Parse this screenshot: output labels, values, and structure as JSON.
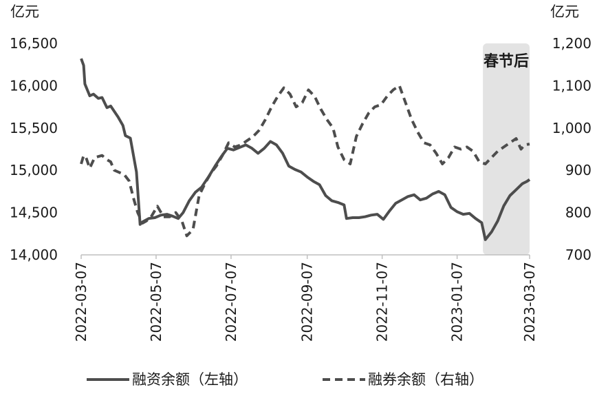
{
  "chart_data": {
    "type": "line",
    "title": "",
    "left_axis": {
      "unit": "亿元",
      "ticks": [
        "16,500",
        "16,000",
        "15,500",
        "15,000",
        "14,500",
        "14,000"
      ],
      "tick_values": [
        16500,
        16000,
        15500,
        15000,
        14500,
        14000
      ],
      "range": [
        14000,
        16500
      ]
    },
    "right_axis": {
      "unit": "亿元",
      "ticks": [
        "1,200",
        "1,100",
        "1,000",
        "900",
        "800",
        "700"
      ],
      "tick_values": [
        1200,
        1100,
        1000,
        900,
        800,
        700
      ],
      "range": [
        700,
        1200
      ]
    },
    "x_axis": {
      "range": [
        "2022-03-07",
        "2023-03-07"
      ],
      "ticks": [
        "2022-03-07",
        "2022-05-07",
        "2022-07-07",
        "2022-09-07",
        "2022-11-07",
        "2023-01-07",
        "2023-03-07"
      ]
    },
    "annotation": {
      "text": "春节后",
      "range": [
        "2023-01-28",
        "2023-03-07"
      ],
      "color": "#e3e3e3"
    },
    "series": [
      {
        "name": "融资余额（左轴）",
        "axis": "left",
        "style": "solid",
        "color": "#4d4d4d",
        "points": [
          [
            "2022-03-07",
            16320
          ],
          [
            "2022-03-09",
            16240
          ],
          [
            "2022-03-10",
            16020
          ],
          [
            "2022-03-14",
            15880
          ],
          [
            "2022-03-17",
            15900
          ],
          [
            "2022-03-21",
            15850
          ],
          [
            "2022-03-24",
            15860
          ],
          [
            "2022-03-28",
            15740
          ],
          [
            "2022-03-31",
            15760
          ],
          [
            "2022-04-06",
            15630
          ],
          [
            "2022-04-10",
            15530
          ],
          [
            "2022-04-12",
            15410
          ],
          [
            "2022-04-16",
            15380
          ],
          [
            "2022-04-21",
            14980
          ],
          [
            "2022-04-24",
            14360
          ],
          [
            "2022-04-26",
            14390
          ],
          [
            "2022-05-01",
            14430
          ],
          [
            "2022-05-06",
            14440
          ],
          [
            "2022-05-11",
            14470
          ],
          [
            "2022-05-16",
            14480
          ],
          [
            "2022-05-20",
            14460
          ],
          [
            "2022-05-25",
            14430
          ],
          [
            "2022-05-29",
            14500
          ],
          [
            "2022-06-03",
            14640
          ],
          [
            "2022-06-08",
            14740
          ],
          [
            "2022-06-13",
            14800
          ],
          [
            "2022-06-19",
            14930
          ],
          [
            "2022-06-24",
            15050
          ],
          [
            "2022-06-29",
            15160
          ],
          [
            "2022-07-04",
            15260
          ],
          [
            "2022-07-09",
            15240
          ],
          [
            "2022-07-14",
            15270
          ],
          [
            "2022-07-19",
            15300
          ],
          [
            "2022-07-24",
            15260
          ],
          [
            "2022-07-29",
            15200
          ],
          [
            "2022-08-03",
            15260
          ],
          [
            "2022-08-08",
            15340
          ],
          [
            "2022-08-13",
            15300
          ],
          [
            "2022-08-18",
            15200
          ],
          [
            "2022-08-23",
            15050
          ],
          [
            "2022-08-28",
            15010
          ],
          [
            "2022-09-02",
            14980
          ],
          [
            "2022-09-07",
            14920
          ],
          [
            "2022-09-12",
            14870
          ],
          [
            "2022-09-17",
            14830
          ],
          [
            "2022-09-22",
            14700
          ],
          [
            "2022-09-27",
            14640
          ],
          [
            "2022-10-02",
            14620
          ],
          [
            "2022-10-07",
            14590
          ],
          [
            "2022-10-09",
            14430
          ],
          [
            "2022-10-14",
            14440
          ],
          [
            "2022-10-19",
            14440
          ],
          [
            "2022-10-24",
            14450
          ],
          [
            "2022-10-29",
            14470
          ],
          [
            "2022-11-03",
            14480
          ],
          [
            "2022-11-08",
            14420
          ],
          [
            "2022-11-13",
            14520
          ],
          [
            "2022-11-18",
            14610
          ],
          [
            "2022-11-23",
            14650
          ],
          [
            "2022-11-28",
            14690
          ],
          [
            "2022-12-03",
            14710
          ],
          [
            "2022-12-08",
            14650
          ],
          [
            "2022-12-13",
            14670
          ],
          [
            "2022-12-18",
            14720
          ],
          [
            "2022-12-23",
            14750
          ],
          [
            "2022-12-28",
            14710
          ],
          [
            "2023-01-02",
            14560
          ],
          [
            "2023-01-07",
            14510
          ],
          [
            "2023-01-12",
            14480
          ],
          [
            "2023-01-17",
            14490
          ],
          [
            "2023-01-22",
            14430
          ],
          [
            "2023-01-27",
            14380
          ],
          [
            "2023-01-30",
            14180
          ],
          [
            "2023-02-04",
            14270
          ],
          [
            "2023-02-09",
            14400
          ],
          [
            "2023-02-14",
            14580
          ],
          [
            "2023-02-19",
            14700
          ],
          [
            "2023-02-24",
            14770
          ],
          [
            "2023-03-01",
            14840
          ],
          [
            "2023-03-05",
            14870
          ],
          [
            "2023-03-07",
            14890
          ]
        ]
      },
      {
        "name": "融券余额（右轴）",
        "axis": "right",
        "style": "dashed",
        "color": "#4d4d4d",
        "points": [
          [
            "2022-03-07",
            915
          ],
          [
            "2022-03-09",
            935
          ],
          [
            "2022-03-11",
            930
          ],
          [
            "2022-03-14",
            905
          ],
          [
            "2022-03-18",
            930
          ],
          [
            "2022-03-24",
            935
          ],
          [
            "2022-03-28",
            925
          ],
          [
            "2022-03-31",
            920
          ],
          [
            "2022-04-03",
            900
          ],
          [
            "2022-04-07",
            895
          ],
          [
            "2022-04-11",
            890
          ],
          [
            "2022-04-15",
            875
          ],
          [
            "2022-04-19",
            830
          ],
          [
            "2022-04-22",
            800
          ],
          [
            "2022-04-26",
            775
          ],
          [
            "2022-04-29",
            780
          ],
          [
            "2022-05-03",
            790
          ],
          [
            "2022-05-08",
            815
          ],
          [
            "2022-05-13",
            790
          ],
          [
            "2022-05-18",
            790
          ],
          [
            "2022-05-23",
            800
          ],
          [
            "2022-05-28",
            780
          ],
          [
            "2022-06-01",
            745
          ],
          [
            "2022-06-06",
            760
          ],
          [
            "2022-06-11",
            840
          ],
          [
            "2022-06-16",
            870
          ],
          [
            "2022-06-21",
            895
          ],
          [
            "2022-06-25",
            910
          ],
          [
            "2022-06-30",
            935
          ],
          [
            "2022-07-05",
            965
          ],
          [
            "2022-07-10",
            955
          ],
          [
            "2022-07-15",
            960
          ],
          [
            "2022-07-20",
            970
          ],
          [
            "2022-07-25",
            980
          ],
          [
            "2022-07-30",
            995
          ],
          [
            "2022-08-04",
            1020
          ],
          [
            "2022-08-09",
            1050
          ],
          [
            "2022-08-14",
            1075
          ],
          [
            "2022-08-19",
            1095
          ],
          [
            "2022-08-24",
            1080
          ],
          [
            "2022-08-29",
            1050
          ],
          [
            "2022-09-03",
            1060
          ],
          [
            "2022-09-08",
            1090
          ],
          [
            "2022-09-13",
            1075
          ],
          [
            "2022-09-18",
            1045
          ],
          [
            "2022-09-23",
            1020
          ],
          [
            "2022-09-28",
            1000
          ],
          [
            "2022-10-02",
            955
          ],
          [
            "2022-10-07",
            925
          ],
          [
            "2022-10-12",
            915
          ],
          [
            "2022-10-17",
            980
          ],
          [
            "2022-10-22",
            1010
          ],
          [
            "2022-10-27",
            1035
          ],
          [
            "2022-11-01",
            1050
          ],
          [
            "2022-11-06",
            1055
          ],
          [
            "2022-11-11",
            1075
          ],
          [
            "2022-11-16",
            1090
          ],
          [
            "2022-11-21",
            1100
          ],
          [
            "2022-11-26",
            1060
          ],
          [
            "2022-12-01",
            1020
          ],
          [
            "2022-12-06",
            990
          ],
          [
            "2022-12-11",
            965
          ],
          [
            "2022-12-16",
            960
          ],
          [
            "2022-12-21",
            940
          ],
          [
            "2022-12-26",
            915
          ],
          [
            "2022-12-31",
            930
          ],
          [
            "2023-01-05",
            955
          ],
          [
            "2023-01-10",
            950
          ],
          [
            "2023-01-15",
            955
          ],
          [
            "2023-01-20",
            945
          ],
          [
            "2023-01-25",
            920
          ],
          [
            "2023-01-30",
            915
          ],
          [
            "2023-02-04",
            930
          ],
          [
            "2023-02-09",
            945
          ],
          [
            "2023-02-14",
            955
          ],
          [
            "2023-02-19",
            965
          ],
          [
            "2023-02-24",
            975
          ],
          [
            "2023-02-28",
            950
          ],
          [
            "2023-03-03",
            960
          ],
          [
            "2023-03-07",
            962
          ]
        ]
      }
    ],
    "legend": {
      "position": "bottom"
    },
    "grid": false
  }
}
